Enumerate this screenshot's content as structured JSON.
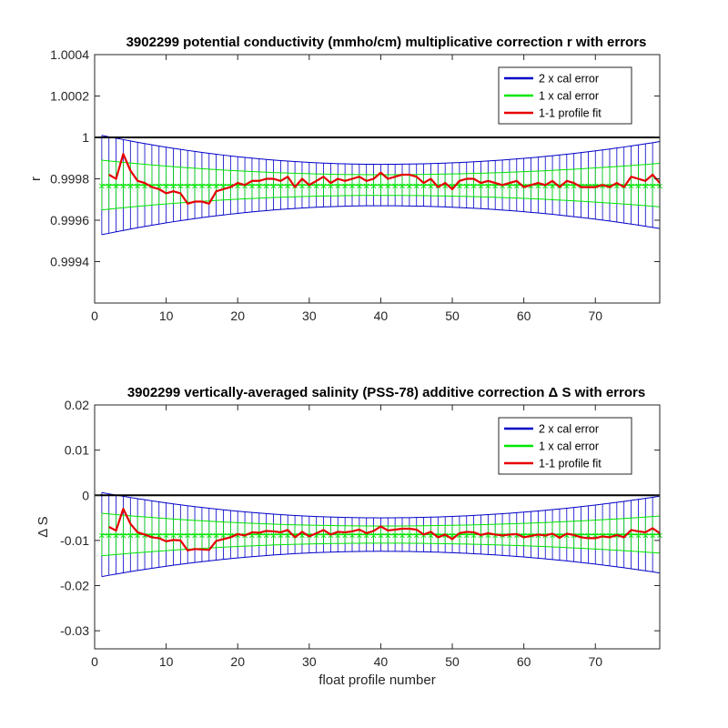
{
  "chart_data": [
    {
      "type": "line",
      "title": "3902299 potential conductivity (mmho/cm) multiplicative correction r with errors",
      "xlabel": "",
      "ylabel": "r",
      "xlim": [
        0,
        79
      ],
      "ylim": [
        0.9992,
        1.0004
      ],
      "xticks": [
        "0",
        "10",
        "20",
        "30",
        "40",
        "50",
        "60",
        "70"
      ],
      "yticks": [
        "0.9994",
        "0.9996",
        "0.9998",
        "1",
        "1.0002",
        "1.0004"
      ],
      "reference_line": 1,
      "legend_position": "top-right",
      "legend": [
        "2 x cal error",
        "1 x cal error",
        "1-1 profile fit"
      ],
      "center": 0.99977,
      "band_2x": {
        "at_start": 0.00024,
        "at_middle": 0.0001,
        "at_end": 0.00021
      },
      "band_1x": {
        "at_start": 0.00012,
        "at_middle": 5e-05,
        "at_end": 0.000105
      },
      "series": [
        {
          "name": "1-1 profile fit",
          "x": [
            2,
            3,
            4,
            5,
            6,
            7,
            8,
            9,
            10,
            11,
            12,
            13,
            14,
            15,
            16,
            17,
            18,
            19,
            20,
            21,
            22,
            23,
            24,
            25,
            26,
            27,
            28,
            29,
            30,
            31,
            32,
            33,
            34,
            35,
            36,
            37,
            38,
            39,
            40,
            41,
            42,
            43,
            44,
            45,
            46,
            47,
            48,
            49,
            50,
            51,
            52,
            53,
            54,
            55,
            56,
            57,
            58,
            59,
            60,
            61,
            62,
            63,
            64,
            65,
            66,
            67,
            68,
            69,
            70,
            71,
            72,
            73,
            74,
            75,
            76,
            77,
            78,
            79
          ],
          "y": [
            0.99982,
            0.9998,
            0.99992,
            0.99984,
            0.99979,
            0.99978,
            0.99976,
            0.99975,
            0.99973,
            0.99974,
            0.99973,
            0.99968,
            0.99969,
            0.99969,
            0.99968,
            0.99974,
            0.99975,
            0.99976,
            0.99978,
            0.99977,
            0.99979,
            0.99979,
            0.9998,
            0.9998,
            0.99979,
            0.99981,
            0.99976,
            0.9998,
            0.99977,
            0.99979,
            0.99981,
            0.99978,
            0.9998,
            0.99979,
            0.9998,
            0.99981,
            0.99979,
            0.9998,
            0.99983,
            0.9998,
            0.99981,
            0.99982,
            0.99982,
            0.99981,
            0.99978,
            0.9998,
            0.99976,
            0.99978,
            0.99975,
            0.99979,
            0.9998,
            0.9998,
            0.99978,
            0.99979,
            0.99978,
            0.99977,
            0.99978,
            0.99979,
            0.99976,
            0.99977,
            0.99978,
            0.99977,
            0.99979,
            0.99976,
            0.99979,
            0.99978,
            0.99976,
            0.99976,
            0.99976,
            0.99977,
            0.99976,
            0.99978,
            0.99976,
            0.99981,
            0.9998,
            0.99979,
            0.99982,
            0.99978
          ]
        }
      ]
    },
    {
      "type": "line",
      "title": "3902299 vertically-averaged salinity (PSS-78) additive correction Δ S with errors",
      "xlabel": "float profile number",
      "ylabel": "Δ S",
      "xlim": [
        0,
        79
      ],
      "ylim": [
        -0.034,
        0.02
      ],
      "xticks": [
        "0",
        "10",
        "20",
        "30",
        "40",
        "50",
        "60",
        "70"
      ],
      "yticks": [
        "-0.03",
        "-0.02",
        "-0.01",
        "0",
        "0.01",
        "0.02"
      ],
      "reference_line": 0,
      "legend_position": "top-right",
      "legend": [
        "2 x cal error",
        "1 x cal error",
        "1-1 profile fit"
      ],
      "center": -0.0087,
      "band_2x": {
        "at_start": 0.0093,
        "at_middle": 0.0037,
        "at_end": 0.0085
      },
      "band_1x": {
        "at_start": 0.0047,
        "at_middle": 0.0019,
        "at_end": 0.0041
      },
      "series": [
        {
          "name": "1-1 profile fit",
          "x": [
            2,
            3,
            4,
            5,
            6,
            7,
            8,
            9,
            10,
            11,
            12,
            13,
            14,
            15,
            16,
            17,
            18,
            19,
            20,
            21,
            22,
            23,
            24,
            25,
            26,
            27,
            28,
            29,
            30,
            31,
            32,
            33,
            34,
            35,
            36,
            37,
            38,
            39,
            40,
            41,
            42,
            43,
            44,
            45,
            46,
            47,
            48,
            49,
            50,
            51,
            52,
            53,
            54,
            55,
            56,
            57,
            58,
            59,
            60,
            61,
            62,
            63,
            64,
            65,
            66,
            67,
            68,
            69,
            70,
            71,
            72,
            73,
            74,
            75,
            76,
            77,
            78,
            79
          ],
          "y": [
            -0.007,
            -0.0078,
            -0.003,
            -0.0063,
            -0.0082,
            -0.0087,
            -0.0093,
            -0.0095,
            -0.0102,
            -0.0099,
            -0.01,
            -0.0122,
            -0.0119,
            -0.012,
            -0.0121,
            -0.0101,
            -0.0097,
            -0.0093,
            -0.0086,
            -0.0089,
            -0.0082,
            -0.0083,
            -0.0079,
            -0.008,
            -0.0082,
            -0.0077,
            -0.0093,
            -0.0081,
            -0.0091,
            -0.0084,
            -0.0077,
            -0.0087,
            -0.0081,
            -0.0082,
            -0.008,
            -0.0076,
            -0.0084,
            -0.0079,
            -0.0069,
            -0.0078,
            -0.0076,
            -0.0074,
            -0.0074,
            -0.0076,
            -0.0087,
            -0.0081,
            -0.0093,
            -0.0087,
            -0.0097,
            -0.0084,
            -0.0081,
            -0.0082,
            -0.0088,
            -0.0084,
            -0.0087,
            -0.0089,
            -0.0087,
            -0.0086,
            -0.0093,
            -0.009,
            -0.0087,
            -0.0089,
            -0.0085,
            -0.0094,
            -0.0085,
            -0.0088,
            -0.0093,
            -0.0095,
            -0.0095,
            -0.0091,
            -0.0093,
            -0.0088,
            -0.0093,
            -0.0077,
            -0.008,
            -0.0082,
            -0.0073,
            -0.0084
          ]
        }
      ]
    }
  ],
  "colors": {
    "band_2x": "#0000c8",
    "band_1x": "#00e600",
    "fit": "#e60000",
    "reference": "#000000",
    "axis": "#262626"
  }
}
